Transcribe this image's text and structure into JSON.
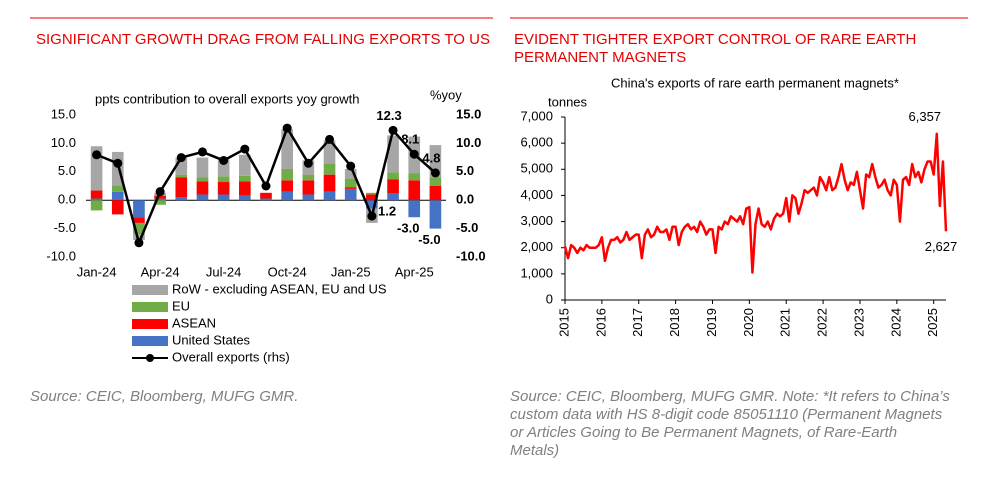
{
  "chart_data": [
    {
      "type": "bar",
      "stacked": true,
      "title": "SIGNIFICANT GROWTH DRAG FROM FALLING EXPORTS TO US",
      "y_label": "ppts contribution to overall exports yoy growth",
      "y2_label": "%yoy",
      "source": "Source: CEIC, Bloomberg, MUFG GMR.",
      "categories": [
        "Jan-24",
        null,
        null,
        "Apr-24",
        null,
        null,
        "Jul-24",
        null,
        null,
        "Oct-24",
        null,
        null,
        "Jan-25",
        null,
        null,
        "Apr-25",
        null
      ],
      "ylim": [
        -10,
        15
      ],
      "yticks": [
        {
          "value": 15,
          "label": "15.0"
        },
        {
          "value": 10,
          "label": "10.0"
        },
        {
          "value": 5,
          "label": "5.0"
        },
        {
          "value": 0,
          "label": "0.0"
        },
        {
          "value": -5,
          "label": "-5.0"
        },
        {
          "value": -10,
          "label": "-10.0"
        }
      ],
      "y2lim": [
        -10,
        15
      ],
      "y2ticks": [
        {
          "value": 15,
          "label": "15.0"
        },
        {
          "value": 10,
          "label": "10.0"
        },
        {
          "value": 5,
          "label": "5.0"
        },
        {
          "value": 0,
          "label": "0.0"
        },
        {
          "value": -5,
          "label": "-5.0"
        },
        {
          "value": -10,
          "label": "-10.0"
        }
      ],
      "series": [
        {
          "name": "RoW - excluding ASEAN, EU and US",
          "color": "#a6a6a6",
          "values": [
            7.8,
            6.0,
            -1.0,
            0.5,
            3.0,
            3.5,
            3.0,
            3.7,
            0,
            7.0,
            2.5,
            4.0,
            1.7,
            -2.5,
            6.5,
            6.5,
            5.7
          ]
        },
        {
          "name": "EU",
          "color": "#70ad47",
          "values": [
            -1.8,
            1.0,
            -2.0,
            -0.8,
            0.5,
            0.7,
            1.0,
            1.0,
            0,
            2.0,
            1.0,
            2.0,
            1.5,
            0.3,
            1.2,
            1.2,
            1.5
          ]
        },
        {
          "name": "ASEAN",
          "color": "#ff0000",
          "values": [
            1.4,
            -2.5,
            -1.0,
            0.5,
            3.5,
            2.3,
            2.2,
            2.5,
            1.0,
            2.0,
            2.5,
            3.0,
            0.3,
            1.0,
            2.5,
            3.5,
            2.5
          ]
        },
        {
          "name": "United States",
          "color": "#4472c4",
          "values": [
            0.3,
            1.5,
            -3.0,
            0.3,
            0.5,
            1.0,
            1.0,
            0.8,
            0.3,
            1.5,
            1.0,
            1.5,
            2.0,
            -1.5,
            1.2,
            -3.0,
            -5.0
          ],
          "value_labels": [
            null,
            null,
            null,
            null,
            null,
            null,
            null,
            null,
            null,
            null,
            null,
            null,
            null,
            null,
            "1.2",
            "-3.0",
            "-5.0"
          ],
          "label_color": "#2e75b6"
        },
        {
          "name": "Overall exports (rhs)",
          "type": "line",
          "axis": "y2",
          "color": "#000000",
          "values": [
            8.0,
            6.5,
            -7.5,
            1.5,
            7.5,
            8.5,
            7.0,
            9.0,
            2.5,
            12.7,
            6.5,
            10.7,
            6.0,
            -2.8,
            12.3,
            8.1,
            4.8
          ],
          "value_labels": [
            null,
            null,
            null,
            null,
            null,
            null,
            null,
            null,
            null,
            null,
            null,
            null,
            null,
            null,
            "12.3",
            "8.1",
            "4.8"
          ]
        }
      ]
    },
    {
      "type": "line",
      "title": "EVIDENT TIGHTER EXPORT CONTROL OF RARE EARTH PERMANENT MAGNETS",
      "subtitle": "China's exports of rare earth permanent magnets*",
      "y_label": "tonnes",
      "source": "Source: CEIC, Bloomberg, MUFG GMR. Note: *It refers to China’s custom data with HS 8-digit code 85051110 (Permanent Magnets or Articles Going to Be Permanent Magnets, of Rare-Earth Metals)",
      "categories": [
        "2015",
        null,
        null,
        null,
        null,
        null,
        null,
        null,
        null,
        null,
        null,
        null,
        "2016",
        null,
        null,
        null,
        null,
        null,
        null,
        null,
        null,
        null,
        null,
        null,
        "2017",
        null,
        null,
        null,
        null,
        null,
        null,
        null,
        null,
        null,
        null,
        null,
        "2018",
        null,
        null,
        null,
        null,
        null,
        null,
        null,
        null,
        null,
        null,
        null,
        "2019",
        null,
        null,
        null,
        null,
        null,
        null,
        null,
        null,
        null,
        null,
        null,
        "2020",
        null,
        null,
        null,
        null,
        null,
        null,
        null,
        null,
        null,
        null,
        null,
        "2021",
        null,
        null,
        null,
        null,
        null,
        null,
        null,
        null,
        null,
        null,
        null,
        "2022",
        null,
        null,
        null,
        null,
        null,
        null,
        null,
        null,
        null,
        null,
        null,
        "2023",
        null,
        null,
        null,
        null,
        null,
        null,
        null,
        null,
        null,
        null,
        null,
        "2024",
        null,
        null,
        null,
        null,
        null,
        null,
        null,
        null,
        null,
        null,
        null,
        "2025",
        null,
        null,
        null,
        null
      ],
      "ylim": [
        0,
        7000
      ],
      "yticks": [
        0,
        {
          "value": 1000,
          "label": "1,000"
        },
        {
          "value": 2000,
          "label": "2,000"
        },
        {
          "value": 3000,
          "label": "3,000"
        },
        {
          "value": 4000,
          "label": "4,000"
        },
        {
          "value": 5000,
          "label": "5,000"
        },
        {
          "value": 6000,
          "label": "6,000"
        },
        {
          "value": 7000,
          "label": "7,000"
        }
      ],
      "series": [
        {
          "name": "China's exports of rare earth permanent magnets",
          "color": "#ff0000",
          "values": [
            2050,
            1600,
            2100,
            2000,
            1800,
            2000,
            1900,
            2100,
            2000,
            2000,
            2000,
            2100,
            2400,
            1500,
            2000,
            2300,
            2300,
            2400,
            2200,
            2300,
            2600,
            2300,
            2400,
            2500,
            2500,
            1600,
            2500,
            2700,
            2400,
            2500,
            2800,
            2600,
            2600,
            2700,
            2300,
            2800,
            2800,
            2100,
            2600,
            2800,
            2900,
            2700,
            2800,
            2600,
            3000,
            2800,
            2500,
            2700,
            2700,
            1800,
            2800,
            2700,
            3000,
            2900,
            3200,
            3100,
            3000,
            3200,
            2900,
            3500,
            3550,
            1050,
            2900,
            3500,
            2900,
            2800,
            3000,
            2700,
            3100,
            3300,
            3200,
            3300,
            3900,
            3000,
            4000,
            3900,
            3300,
            3700,
            4200,
            4100,
            4200,
            4300,
            4000,
            4700,
            4500,
            4200,
            4700,
            4200,
            4300,
            4700,
            5200,
            4600,
            4200,
            4500,
            4400,
            4900,
            4200,
            3500,
            4800,
            4700,
            5200,
            4700,
            4300,
            4400,
            4600,
            4200,
            4000,
            4600,
            4400,
            3000,
            4600,
            4700,
            4400,
            5200,
            4700,
            4900,
            4500,
            5000,
            5300,
            5300,
            4800,
            6357,
            3600,
            5300,
            2627
          ],
          "value_labels": [
            null,
            null,
            null,
            null,
            null,
            null,
            null,
            null,
            null,
            null,
            null,
            null,
            null,
            null,
            null,
            null,
            null,
            null,
            null,
            null,
            null,
            null,
            null,
            null,
            null,
            null,
            null,
            null,
            null,
            null,
            null,
            null,
            null,
            null,
            null,
            null,
            null,
            null,
            null,
            null,
            null,
            null,
            null,
            null,
            null,
            null,
            null,
            null,
            null,
            null,
            null,
            null,
            null,
            null,
            null,
            null,
            null,
            null,
            null,
            null,
            null,
            null,
            null,
            null,
            null,
            null,
            null,
            null,
            null,
            null,
            null,
            null,
            null,
            null,
            null,
            null,
            null,
            null,
            null,
            null,
            null,
            null,
            null,
            null,
            null,
            null,
            null,
            null,
            null,
            null,
            null,
            null,
            null,
            null,
            null,
            null,
            null,
            null,
            null,
            null,
            null,
            null,
            null,
            null,
            null,
            null,
            null,
            null,
            null,
            null,
            null,
            null,
            null,
            null,
            null,
            null,
            null,
            null,
            null,
            null,
            null,
            "6,357",
            null,
            null,
            "2,627"
          ]
        }
      ]
    }
  ]
}
